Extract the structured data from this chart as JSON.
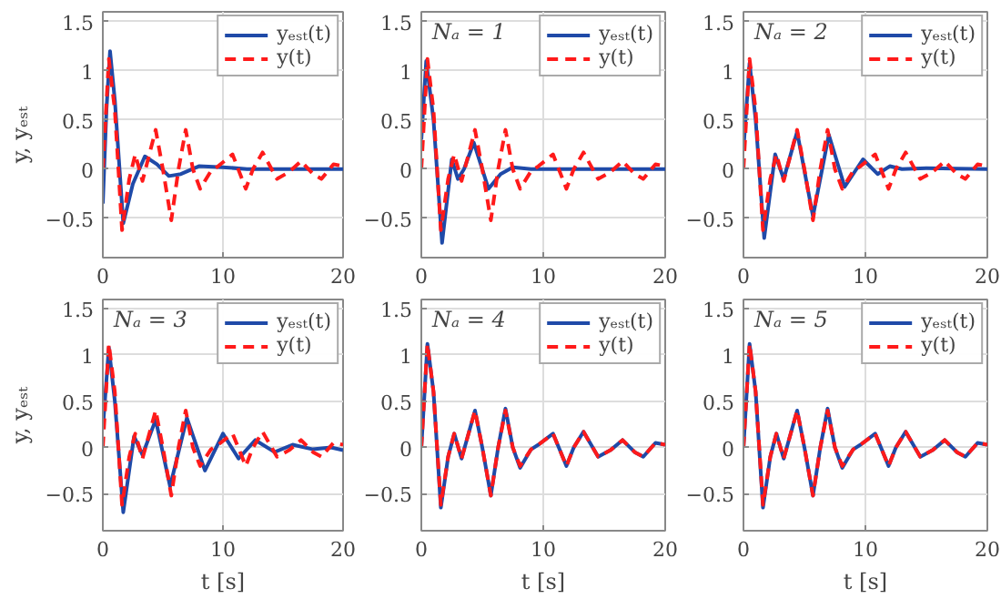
{
  "chart_data": [
    {
      "type": "line",
      "ylabel": "y, yₑₛₜ",
      "xlim": [
        0,
        20
      ],
      "ylim": [
        -0.9,
        1.6
      ],
      "xticks": [
        0,
        10,
        20
      ],
      "yticks": [
        -0.5,
        0,
        0.5,
        1,
        1.5
      ],
      "grid": true,
      "legend": "top right",
      "series": [
        {
          "name": "yₑₛₜ(t)",
          "color": "#1f4aa8",
          "line_style": "solid",
          "x": [
            0,
            0.3,
            0.6,
            1.0,
            1.7,
            2.5,
            3.5,
            4.5,
            5.5,
            6.5,
            8,
            10,
            12,
            20
          ],
          "values": [
            -0.35,
            0.6,
            1.2,
            0.7,
            -0.55,
            -0.15,
            0.13,
            0.05,
            -0.07,
            -0.05,
            0.03,
            0.02,
            0,
            0
          ]
        },
        {
          "name": "y(t)",
          "color": "#ff1a1a",
          "line_style": "dashed",
          "x": [
            0,
            0.5,
            1.0,
            1.6,
            2.2,
            2.7,
            3.3,
            4.4,
            5.0,
            5.7,
            6.3,
            6.9,
            7.5,
            8.1,
            9.0,
            9.6,
            10.8,
            11.9,
            12.5,
            13.3,
            14.5,
            15.5,
            16.5,
            17.5,
            18.2,
            19.2,
            20
          ],
          "values": [
            0,
            1.12,
            0.6,
            -0.62,
            -0.1,
            0.15,
            -0.12,
            0.4,
            0,
            -0.52,
            0,
            0.4,
            0,
            -0.2,
            -0.02,
            0.03,
            0.15,
            -0.2,
            0,
            0.17,
            -0.1,
            -0.03,
            0.08,
            -0.05,
            -0.1,
            0.05,
            0.03
          ]
        }
      ]
    },
    {
      "type": "line",
      "title": "Nₐ = 1",
      "xlim": [
        0,
        20
      ],
      "ylim": [
        -0.9,
        1.6
      ],
      "xticks": [
        0,
        10,
        20
      ],
      "yticks": [
        -0.5,
        0,
        0.5,
        1,
        1.5
      ],
      "grid": true,
      "legend": "top right",
      "series": [
        {
          "name": "yₑₛₜ(t)",
          "color": "#1f4aa8",
          "line_style": "solid",
          "x": [
            0,
            0.4,
            1.0,
            1.7,
            2.5,
            3.0,
            3.5,
            4.3,
            5.0,
            5.5,
            6.5,
            7.5,
            9,
            20
          ],
          "values": [
            0.3,
            1.1,
            0.5,
            -0.75,
            0.1,
            -0.1,
            0.0,
            0.27,
            0.0,
            -0.2,
            -0.05,
            0.02,
            0,
            0
          ]
        },
        {
          "name": "y(t)",
          "color": "#ff1a1a",
          "line_style": "dashed",
          "x": [
            0,
            0.5,
            1.0,
            1.6,
            2.2,
            2.7,
            3.3,
            4.4,
            5.0,
            5.7,
            6.3,
            6.9,
            7.5,
            8.1,
            9.0,
            9.6,
            10.8,
            11.9,
            12.5,
            13.3,
            14.5,
            15.5,
            16.5,
            17.5,
            18.2,
            19.2,
            20
          ],
          "values": [
            0,
            1.12,
            0.6,
            -0.62,
            -0.1,
            0.15,
            -0.12,
            0.4,
            0,
            -0.52,
            0,
            0.4,
            0,
            -0.2,
            -0.02,
            0.03,
            0.15,
            -0.2,
            0,
            0.17,
            -0.1,
            -0.03,
            0.08,
            -0.05,
            -0.1,
            0.05,
            0.03
          ]
        }
      ]
    },
    {
      "type": "line",
      "title": "Nₐ = 2",
      "xlim": [
        0,
        20
      ],
      "ylim": [
        -0.9,
        1.6
      ],
      "xticks": [
        0,
        10,
        20
      ],
      "yticks": [
        -0.5,
        0,
        0.5,
        1,
        1.5
      ],
      "grid": true,
      "legend": "top right",
      "series": [
        {
          "name": "yₑₛₜ(t)",
          "color": "#1f4aa8",
          "line_style": "solid",
          "x": [
            0,
            0.5,
            1.0,
            1.7,
            2.6,
            3.3,
            4.4,
            5.7,
            7.0,
            8.3,
            9.8,
            11,
            12,
            13,
            15,
            20
          ],
          "values": [
            0.2,
            1.08,
            0.5,
            -0.7,
            0.15,
            -0.1,
            0.38,
            -0.48,
            0.35,
            -0.18,
            0.1,
            -0.05,
            0.03,
            0,
            0.01,
            0
          ]
        },
        {
          "name": "y(t)",
          "color": "#ff1a1a",
          "line_style": "dashed",
          "x": [
            0,
            0.5,
            1.0,
            1.6,
            2.2,
            2.7,
            3.3,
            4.4,
            5.0,
            5.7,
            6.3,
            6.9,
            7.5,
            8.1,
            9.0,
            9.6,
            10.8,
            11.9,
            12.5,
            13.3,
            14.5,
            15.5,
            16.5,
            17.5,
            18.2,
            19.2,
            20
          ],
          "values": [
            0,
            1.12,
            0.6,
            -0.62,
            -0.1,
            0.15,
            -0.12,
            0.4,
            0,
            -0.52,
            0,
            0.4,
            0,
            -0.2,
            -0.02,
            0.03,
            0.15,
            -0.2,
            0,
            0.17,
            -0.1,
            -0.03,
            0.08,
            -0.05,
            -0.1,
            0.05,
            0.03
          ]
        }
      ]
    },
    {
      "type": "line",
      "title": "Nₐ = 3",
      "xlabel": "t [s]",
      "ylabel": "y, yₑₛₜ",
      "xlim": [
        0,
        20
      ],
      "ylim": [
        -0.9,
        1.6
      ],
      "xticks": [
        0,
        10,
        20
      ],
      "yticks": [
        -0.5,
        0,
        0.5,
        1,
        1.5
      ],
      "grid": true,
      "legend": "top right",
      "series": [
        {
          "name": "yₑₛₜ(t)",
          "color": "#1f4aa8",
          "line_style": "solid",
          "x": [
            0,
            0.5,
            1.0,
            1.7,
            2.6,
            3.3,
            4.4,
            5.6,
            7.0,
            8.5,
            10.0,
            11.3,
            12.7,
            14.3,
            15.8,
            17.5,
            19,
            20
          ],
          "values": [
            0.2,
            1.08,
            0.5,
            -0.7,
            0.12,
            -0.08,
            0.3,
            -0.42,
            0.32,
            -0.25,
            0.15,
            -0.12,
            0.08,
            -0.05,
            0.03,
            -0.02,
            0,
            -0.03
          ]
        },
        {
          "name": "y(t)",
          "color": "#ff1a1a",
          "line_style": "dashed",
          "x": [
            0,
            0.5,
            1.0,
            1.6,
            2.2,
            2.7,
            3.3,
            4.4,
            5.0,
            5.7,
            6.3,
            6.9,
            7.5,
            8.1,
            9.0,
            9.6,
            10.8,
            11.9,
            12.5,
            13.3,
            14.5,
            15.5,
            16.5,
            17.5,
            18.2,
            19.2,
            20
          ],
          "values": [
            0,
            1.12,
            0.6,
            -0.62,
            -0.1,
            0.15,
            -0.12,
            0.4,
            0,
            -0.52,
            0,
            0.4,
            0,
            -0.2,
            -0.02,
            0.03,
            0.15,
            -0.2,
            0,
            0.17,
            -0.1,
            -0.03,
            0.08,
            -0.05,
            -0.1,
            0.05,
            0.03
          ]
        }
      ]
    },
    {
      "type": "line",
      "title": "Nₐ = 4",
      "xlabel": "t [s]",
      "xlim": [
        0,
        20
      ],
      "ylim": [
        -0.9,
        1.6
      ],
      "xticks": [
        0,
        10,
        20
      ],
      "yticks": [
        -0.5,
        0,
        0.5,
        1,
        1.5
      ],
      "grid": true,
      "legend": "top right",
      "series": [
        {
          "name": "yₑₛₜ(t)",
          "color": "#1f4aa8",
          "line_style": "solid",
          "x": [
            0,
            0.5,
            1.0,
            1.6,
            2.2,
            2.7,
            3.3,
            4.4,
            5.0,
            5.7,
            6.3,
            6.9,
            7.5,
            8.1,
            9.0,
            9.6,
            10.8,
            11.9,
            12.5,
            13.3,
            14.5,
            15.5,
            16.5,
            17.5,
            18.2,
            19.2,
            20
          ],
          "values": [
            0,
            1.12,
            0.6,
            -0.65,
            -0.1,
            0.15,
            -0.12,
            0.4,
            0,
            -0.52,
            0,
            0.42,
            0,
            -0.22,
            -0.02,
            0.03,
            0.15,
            -0.2,
            0,
            0.17,
            -0.1,
            -0.03,
            0.08,
            -0.05,
            -0.1,
            0.05,
            0.03
          ]
        },
        {
          "name": "y(t)",
          "color": "#ff1a1a",
          "line_style": "dashed",
          "x": [
            0,
            0.5,
            1.0,
            1.6,
            2.2,
            2.7,
            3.3,
            4.4,
            5.0,
            5.7,
            6.3,
            6.9,
            7.5,
            8.1,
            9.0,
            9.6,
            10.8,
            11.9,
            12.5,
            13.3,
            14.5,
            15.5,
            16.5,
            17.5,
            18.2,
            19.2,
            20
          ],
          "values": [
            0,
            1.12,
            0.6,
            -0.62,
            -0.1,
            0.15,
            -0.12,
            0.4,
            0,
            -0.52,
            0,
            0.4,
            0,
            -0.2,
            -0.02,
            0.03,
            0.15,
            -0.2,
            0,
            0.17,
            -0.1,
            -0.03,
            0.08,
            -0.05,
            -0.1,
            0.05,
            0.03
          ]
        }
      ]
    },
    {
      "type": "line",
      "title": "Nₐ = 5",
      "xlabel": "t [s]",
      "xlim": [
        0,
        20
      ],
      "ylim": [
        -0.9,
        1.6
      ],
      "xticks": [
        0,
        10,
        20
      ],
      "yticks": [
        -0.5,
        0,
        0.5,
        1,
        1.5
      ],
      "grid": true,
      "legend": "top right",
      "series": [
        {
          "name": "yₑₛₜ(t)",
          "color": "#1f4aa8",
          "line_style": "solid",
          "x": [
            0,
            0.5,
            1.0,
            1.6,
            2.2,
            2.7,
            3.3,
            4.4,
            5.0,
            5.7,
            6.3,
            6.9,
            7.5,
            8.1,
            9.0,
            9.6,
            10.8,
            11.9,
            12.5,
            13.3,
            14.5,
            15.5,
            16.5,
            17.5,
            18.2,
            19.2,
            20
          ],
          "values": [
            0,
            1.12,
            0.6,
            -0.65,
            -0.1,
            0.15,
            -0.12,
            0.4,
            0,
            -0.52,
            0,
            0.42,
            0,
            -0.22,
            -0.02,
            0.03,
            0.15,
            -0.2,
            0,
            0.17,
            -0.1,
            -0.03,
            0.08,
            -0.05,
            -0.1,
            0.05,
            0.03
          ]
        },
        {
          "name": "y(t)",
          "color": "#ff1a1a",
          "line_style": "dashed",
          "x": [
            0,
            0.5,
            1.0,
            1.6,
            2.2,
            2.7,
            3.3,
            4.4,
            5.0,
            5.7,
            6.3,
            6.9,
            7.5,
            8.1,
            9.0,
            9.6,
            10.8,
            11.9,
            12.5,
            13.3,
            14.5,
            15.5,
            16.5,
            17.5,
            18.2,
            19.2,
            20
          ],
          "values": [
            0,
            1.12,
            0.6,
            -0.62,
            -0.1,
            0.15,
            -0.12,
            0.4,
            0,
            -0.52,
            0,
            0.4,
            0,
            -0.2,
            -0.02,
            0.03,
            0.15,
            -0.2,
            0,
            0.17,
            -0.1,
            -0.03,
            0.08,
            -0.05,
            -0.1,
            0.05,
            0.03
          ]
        }
      ]
    }
  ]
}
